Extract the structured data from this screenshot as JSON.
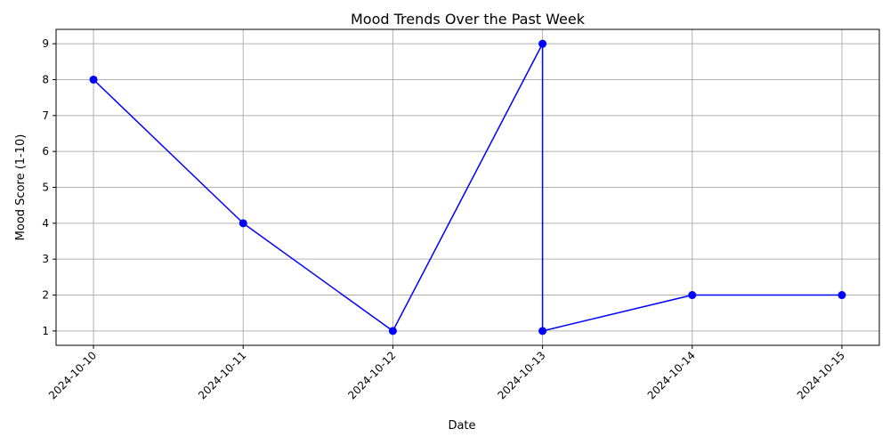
{
  "chart_data": {
    "type": "line",
    "title": "Mood Trends Over the Past Week",
    "xlabel": "Date",
    "ylabel": "Mood Score (1-10)",
    "x_ticks": [
      "2024-10-10",
      "2024-10-11",
      "2024-10-12",
      "2024-10-13",
      "2024-10-14",
      "2024-10-15"
    ],
    "y_ticks": [
      1,
      2,
      3,
      4,
      5,
      6,
      7,
      8,
      9
    ],
    "xlim": [
      "2024-10-09T18:00",
      "2024-10-15T06:00"
    ],
    "ylim": [
      0.6,
      9.4
    ],
    "grid": true,
    "series": [
      {
        "color": "#0000ff",
        "marker": "circle",
        "points": [
          {
            "x": "2024-10-10",
            "y": 8
          },
          {
            "x": "2024-10-11",
            "y": 4
          },
          {
            "x": "2024-10-12",
            "y": 1
          },
          {
            "x": "2024-10-13",
            "y": 9
          },
          {
            "x": "2024-10-13",
            "y": 1
          },
          {
            "x": "2024-10-14",
            "y": 2
          },
          {
            "x": "2024-10-15",
            "y": 2
          }
        ]
      }
    ]
  }
}
